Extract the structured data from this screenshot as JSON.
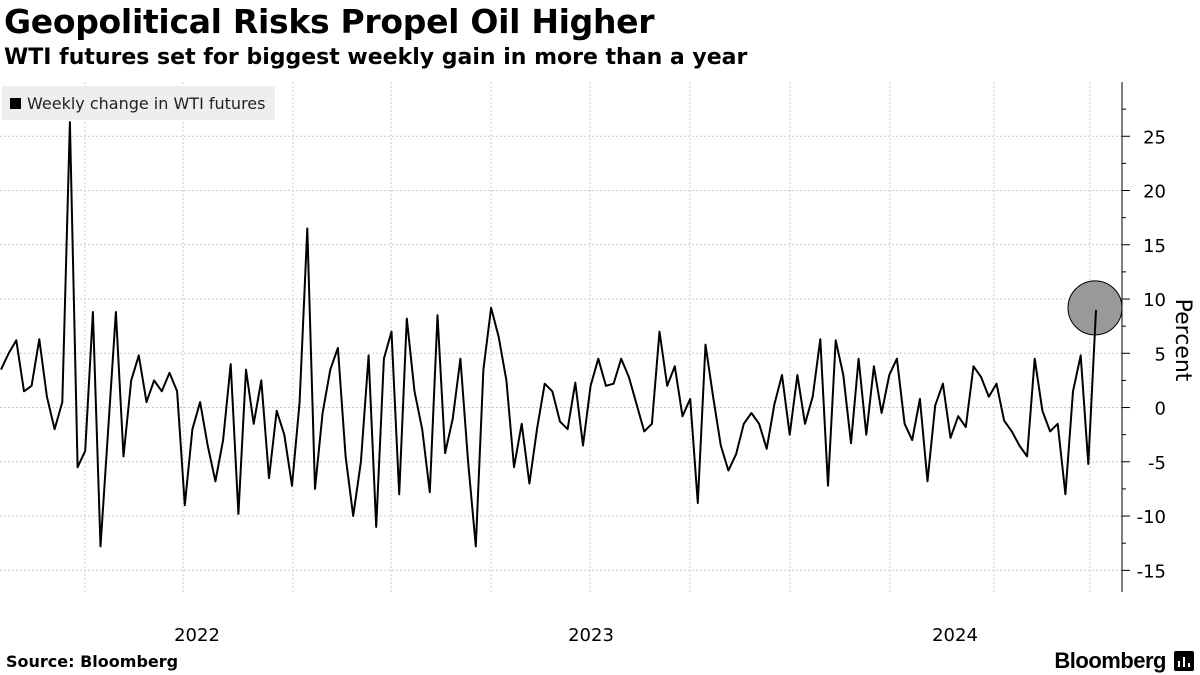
{
  "header": {
    "title": "Geopolitical Risks Propel Oil Higher",
    "subtitle": "WTI futures set for biggest weekly gain in more than a year"
  },
  "footer": {
    "source": "Source: Bloomberg",
    "brand": "Bloomberg"
  },
  "colors": {
    "line": "#000000",
    "grid": "#cccccc",
    "highlight_fill": "#999999",
    "legend_bg": "#eeeeee"
  },
  "chart_data": {
    "type": "line",
    "title": "Geopolitical Risks Propel Oil Higher",
    "subtitle": "WTI futures set for biggest weekly gain in more than a year",
    "ylabel": "Percent",
    "xlabel": "",
    "ylim": [
      -17,
      30
    ],
    "yticks": [
      -15,
      -10,
      -5,
      0,
      5,
      10,
      15,
      20,
      25
    ],
    "x_tick_labels": [
      "2022",
      "2023",
      "2024"
    ],
    "x_domain": [
      "2021-08",
      "2024-04"
    ],
    "y_axis_side": "right",
    "grid": true,
    "legend": "top-left",
    "highlight_last_point": true,
    "series": [
      {
        "name": "Weekly change in WTI futures",
        "values": [
          3.5,
          5.0,
          6.2,
          1.5,
          2.0,
          6.3,
          1.0,
          -2.0,
          0.5,
          26.3,
          -5.5,
          -4.0,
          8.8,
          -12.8,
          -2.0,
          8.8,
          -4.5,
          2.5,
          4.8,
          0.5,
          2.5,
          1.5,
          3.2,
          1.5,
          -9.0,
          -2.0,
          0.5,
          -3.5,
          -6.8,
          -3.0,
          4.0,
          -9.8,
          3.5,
          -1.5,
          2.5,
          -6.5,
          -0.3,
          -2.5,
          -7.2,
          0.5,
          16.5,
          -7.5,
          -0.5,
          3.5,
          5.5,
          -4.5,
          -10.0,
          -5.0,
          4.8,
          -11.0,
          4.5,
          7.0,
          -8.0,
          8.2,
          1.5,
          -2.0,
          -7.8,
          8.5,
          -4.2,
          -1.0,
          4.5,
          -5.0,
          -12.8,
          3.5,
          9.2,
          6.5,
          2.5,
          -5.5,
          -1.5,
          -7.0,
          -2.0,
          2.2,
          1.5,
          -1.3,
          -2.0,
          2.3,
          -3.5,
          2.0,
          4.5,
          2.0,
          2.2,
          4.5,
          2.8,
          0.3,
          -2.2,
          -1.5,
          7.0,
          2.0,
          3.8,
          -0.8,
          0.8,
          -8.8,
          5.8,
          1.0,
          -3.5,
          -5.8,
          -4.3,
          -1.5,
          -0.5,
          -1.5,
          -3.8,
          0.3,
          3.0,
          -2.5,
          3.0,
          -1.5,
          1.0,
          6.3,
          -7.2,
          6.2,
          3.0,
          -3.3,
          4.5,
          -2.5,
          3.8,
          -0.5,
          3.0,
          4.5,
          -1.5,
          -3.0,
          0.8,
          -6.8,
          0.2,
          2.2,
          -2.8,
          -0.8,
          -1.8,
          3.8,
          2.8,
          1.0,
          2.2,
          -1.2,
          -2.2,
          -3.5,
          -4.5,
          4.5,
          -0.3,
          -2.2,
          -1.5,
          -8.0,
          1.5,
          4.8,
          -5.2,
          9.0
        ]
      }
    ]
  }
}
